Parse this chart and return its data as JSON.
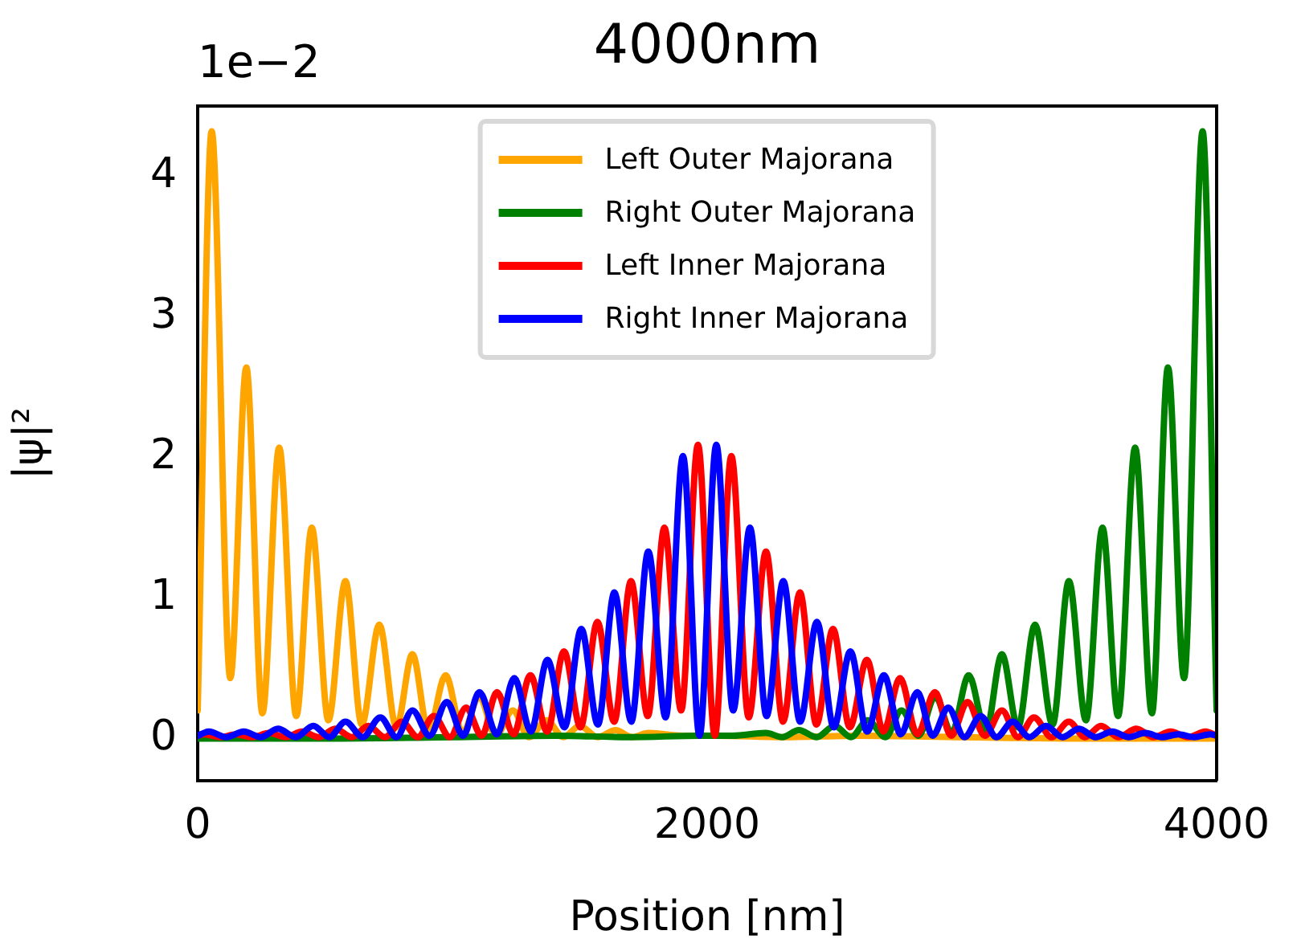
{
  "chart_data": {
    "type": "line",
    "title": "4000nm",
    "xlabel": "Position [nm]",
    "ylabel": "|ψ|²",
    "annotations": [
      "1e−2"
    ],
    "xlim": [
      0,
      4000
    ],
    "xticks": [
      0,
      2000,
      4000
    ],
    "ylim": [
      -0.3,
      4.5
    ],
    "yticks": [
      0,
      1,
      2,
      3,
      4
    ],
    "grid": false,
    "legend": "top",
    "marker": "none",
    "line_style": "solid",
    "series": [
      {
        "name": "Left Outer Majorana",
        "color": "#ffa500",
        "x": [
          0,
          55,
          128,
          191,
          254,
          320,
          387,
          448,
          513,
          580,
          644,
          713,
          780,
          843,
          906,
          973,
          1040,
          1105,
          1170,
          1237,
          1300,
          1370,
          1435,
          1500,
          1570,
          1640,
          1705,
          1770,
          1900,
          2030,
          2300,
          2600,
          3000,
          3500,
          4000
        ],
        "values": [
          0.2,
          4.32,
          0.43,
          2.64,
          0.18,
          2.07,
          0.16,
          1.5,
          0.13,
          1.12,
          0.1,
          0.81,
          0.08,
          0.6,
          0.05,
          0.45,
          0.04,
          0.3,
          0.02,
          0.2,
          0.01,
          0.13,
          0.01,
          0.09,
          0.01,
          0.06,
          0.01,
          0.04,
          0.02,
          0.02,
          0.01,
          0.02,
          0.01,
          0,
          0
        ]
      },
      {
        "name": "Right Outer Majorana",
        "color": "#008000",
        "x": [
          0,
          500,
          1000,
          1400,
          1700,
          1970,
          2100,
          2230,
          2295,
          2360,
          2430,
          2500,
          2565,
          2630,
          2700,
          2763,
          2830,
          2895,
          2960,
          3027,
          3094,
          3157,
          3220,
          3287,
          3356,
          3420,
          3487,
          3552,
          3613,
          3680,
          3746,
          3809,
          3872,
          3945,
          4000
        ],
        "values": [
          0,
          0,
          0.01,
          0.02,
          0.01,
          0.02,
          0.02,
          0.04,
          0.01,
          0.06,
          0.01,
          0.09,
          0.01,
          0.13,
          0.01,
          0.2,
          0.02,
          0.3,
          0.04,
          0.45,
          0.05,
          0.6,
          0.08,
          0.81,
          0.1,
          1.12,
          0.13,
          1.5,
          0.16,
          2.07,
          0.18,
          2.64,
          0.43,
          4.32,
          0.2
        ]
      },
      {
        "name": "Left Inner Majorana",
        "color": "#ff0000",
        "x": [
          0,
          25,
          88,
          150,
          215,
          280,
          345,
          410,
          475,
          540,
          605,
          670,
          735,
          801,
          864,
          927,
          990,
          1054,
          1115,
          1175,
          1240,
          1306,
          1372,
          1438,
          1503,
          1569,
          1635,
          1701,
          1767,
          1832,
          1898,
          1964,
          2030,
          2095,
          2163,
          2231,
          2298,
          2364,
          2429,
          2494,
          2560,
          2627,
          2692,
          2757,
          2825,
          2894,
          2958,
          3022,
          3090,
          3157,
          3220,
          3283,
          3352,
          3420,
          3483,
          3546,
          3615,
          3685,
          3752,
          3819,
          3888,
          3956,
          4000
        ],
        "values": [
          0.02,
          0.03,
          0.01,
          0.03,
          0.01,
          0.04,
          0.01,
          0.05,
          0.01,
          0.07,
          0.01,
          0.09,
          0.01,
          0.12,
          0.01,
          0.16,
          0.01,
          0.22,
          0.02,
          0.33,
          0.03,
          0.45,
          0.05,
          0.62,
          0.08,
          0.83,
          0.12,
          1.12,
          0.16,
          1.5,
          0.2,
          2.09,
          0.02,
          2.01,
          0.15,
          1.33,
          0.12,
          1.04,
          0.1,
          0.78,
          0.08,
          0.56,
          0.05,
          0.43,
          0.03,
          0.33,
          0.02,
          0.26,
          0.02,
          0.2,
          0.01,
          0.15,
          0.01,
          0.12,
          0.01,
          0.09,
          0.01,
          0.07,
          0.01,
          0.05,
          0.01,
          0.05,
          0.02
        ]
      },
      {
        "name": "Right Inner Majorana",
        "color": "#0000ff",
        "x": [
          0,
          44,
          112,
          181,
          248,
          315,
          385,
          454,
          517,
          580,
          648,
          717,
          780,
          843,
          910,
          978,
          1042,
          1106,
          1175,
          1243,
          1308,
          1373,
          1440,
          1506,
          1571,
          1636,
          1702,
          1769,
          1837,
          1905,
          1970,
          2036,
          2102,
          2168,
          2233,
          2299,
          2365,
          2431,
          2497,
          2562,
          2628,
          2694,
          2760,
          2825,
          2885,
          2946,
          3010,
          3073,
          3136,
          3199,
          3265,
          3330,
          3395,
          3460,
          3525,
          3590,
          3655,
          3720,
          3785,
          3850,
          3912,
          3975,
          4000
        ],
        "values": [
          0.02,
          0.05,
          0.01,
          0.05,
          0.01,
          0.07,
          0.01,
          0.09,
          0.01,
          0.12,
          0.01,
          0.15,
          0.01,
          0.2,
          0.02,
          0.26,
          0.02,
          0.33,
          0.03,
          0.43,
          0.05,
          0.56,
          0.08,
          0.78,
          0.1,
          1.04,
          0.12,
          1.33,
          0.15,
          2.01,
          0.02,
          2.09,
          0.2,
          1.5,
          0.16,
          1.12,
          0.12,
          0.83,
          0.08,
          0.62,
          0.05,
          0.45,
          0.03,
          0.33,
          0.02,
          0.22,
          0.01,
          0.16,
          0.01,
          0.12,
          0.01,
          0.09,
          0.01,
          0.07,
          0.01,
          0.05,
          0.01,
          0.04,
          0.01,
          0.03,
          0.01,
          0.03,
          0.02
        ]
      }
    ]
  }
}
